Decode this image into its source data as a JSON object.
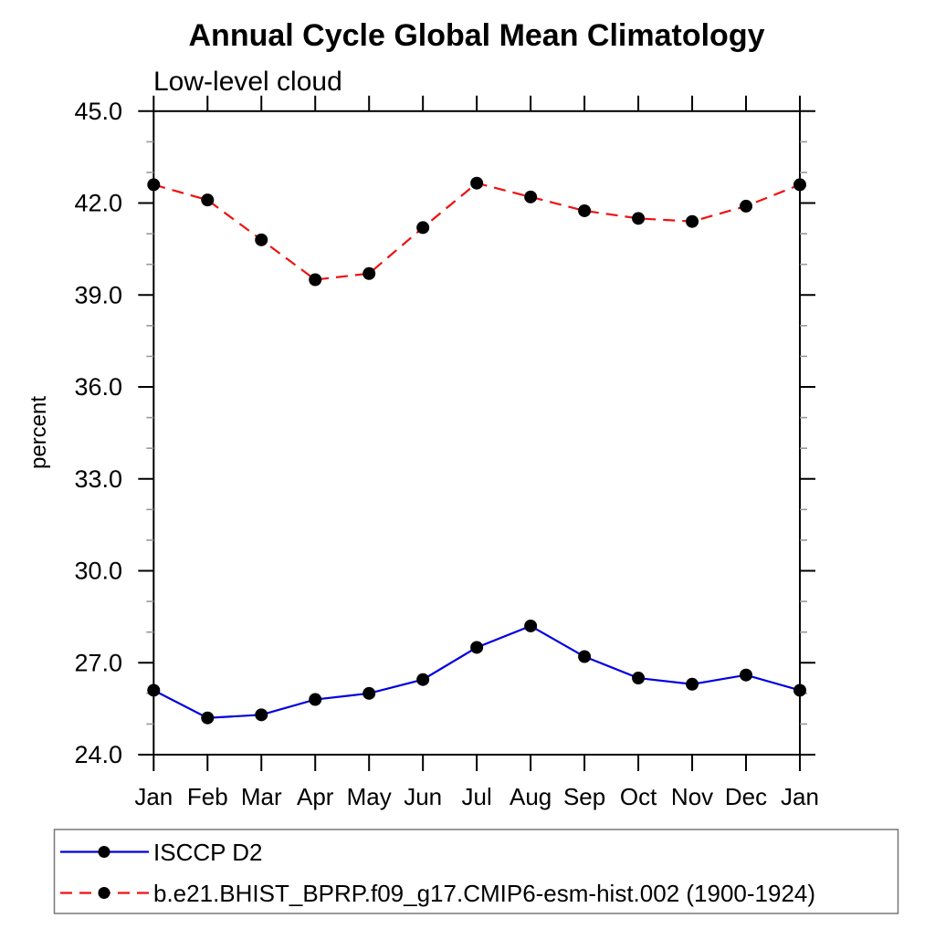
{
  "page": {
    "background_color": "#ffffff"
  },
  "chart_data": {
    "type": "line",
    "title": "Annual Cycle Global Mean Climatology",
    "subtitle": "Low-level cloud",
    "ylabel": "percent",
    "xlabel": "",
    "categories": [
      "Jan",
      "Feb",
      "Mar",
      "Apr",
      "May",
      "Jun",
      "Jul",
      "Aug",
      "Sep",
      "Oct",
      "Nov",
      "Dec",
      "Jan"
    ],
    "ylim": [
      24.0,
      45.0
    ],
    "ytick_major_step": 3.0,
    "ytick_minor_step": 1.0,
    "ytick_labels": [
      "24.0",
      "27.0",
      "30.0",
      "33.0",
      "36.0",
      "39.0",
      "42.0",
      "45.0"
    ],
    "grid": false,
    "legend_position": "bottom-left-box",
    "axis_color": "#000000",
    "minor_tick_color": "#999999",
    "series": [
      {
        "name": "ISCCP D2",
        "color": "#0000e0",
        "line_style": "solid",
        "marker": "filled-circle",
        "marker_color": "#000000",
        "values": [
          26.1,
          25.2,
          25.3,
          25.8,
          26.0,
          26.45,
          27.5,
          28.2,
          27.2,
          26.5,
          26.3,
          26.6,
          26.1
        ]
      },
      {
        "name": "b.e21.BHIST_BPRP.f09_g17.CMIP6-esm-hist.002 (1900-1924)",
        "color": "#ee1111",
        "line_style": "dashed",
        "marker": "filled-circle",
        "marker_color": "#000000",
        "values": [
          42.6,
          42.1,
          40.8,
          39.5,
          39.7,
          41.2,
          42.65,
          42.2,
          41.75,
          41.5,
          41.4,
          41.9,
          42.6
        ]
      }
    ]
  }
}
